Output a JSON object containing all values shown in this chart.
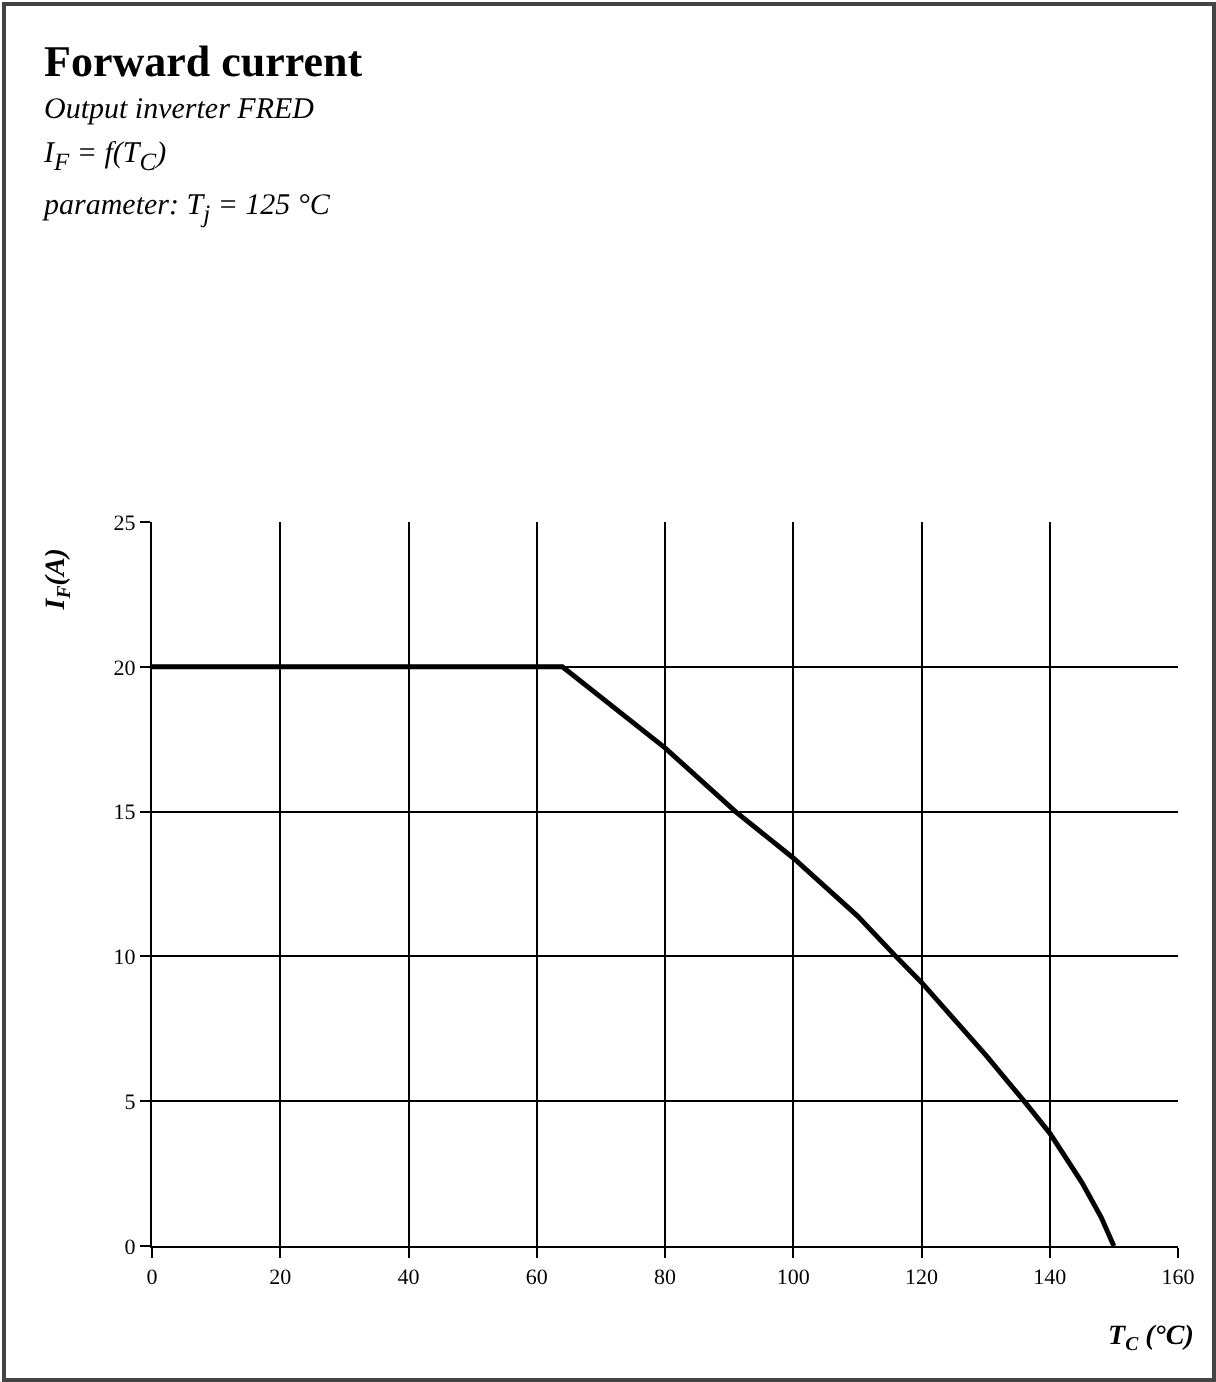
{
  "chart_data": {
    "type": "line",
    "title": "Forward current",
    "subtitle": "Output inverter FRED",
    "annotations": [
      "I$_{F}$ = f(T$_{C}$)",
      "parameter:  T$_{j}$ =  125 °C"
    ],
    "xlabel": "T$_{C}$ (°C)",
    "ylabel": "I$_{F}$(A)",
    "x": [
      0,
      64,
      80,
      91,
      100,
      110,
      116,
      120,
      130,
      136,
      140,
      145,
      148,
      150
    ],
    "series": [
      {
        "color": "#000000",
        "values": [
          20,
          20,
          17.2,
          15,
          13.4,
          11.4,
          10,
          9.1,
          6.6,
          5,
          3.9,
          2.2,
          1,
          0
        ]
      }
    ],
    "xlim": [
      0,
      160
    ],
    "xticks": [
      0,
      20,
      40,
      60,
      80,
      100,
      120,
      140,
      160
    ],
    "ylim": [
      0,
      25
    ],
    "yticks": [
      0,
      5,
      10,
      15,
      20,
      25
    ],
    "grid": true,
    "legend": false,
    "marker": "none",
    "line_style": "solid"
  }
}
